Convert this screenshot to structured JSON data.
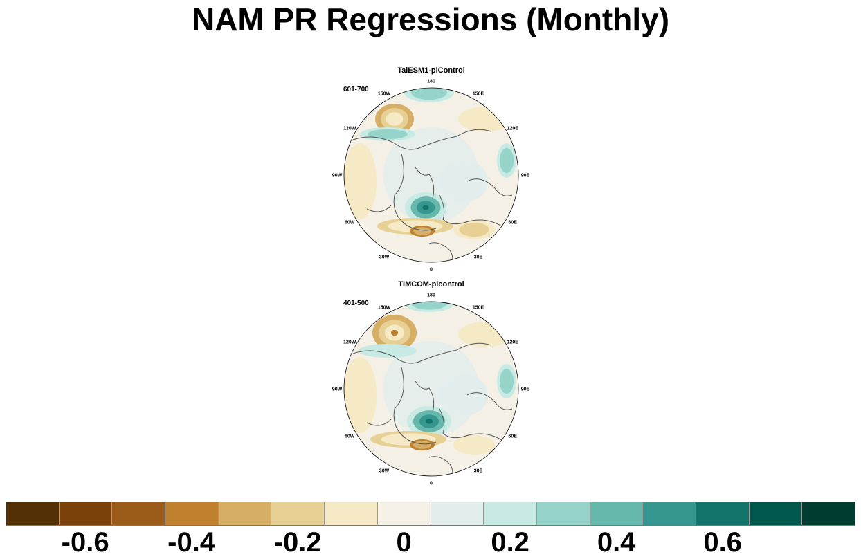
{
  "title": "NAM PR Regressions (Monthly)",
  "panels": [
    {
      "name": "TaiESM1-piControl",
      "period": "601-700"
    },
    {
      "name": "TIMCOM-picontrol",
      "period": "401-500"
    }
  ],
  "longitude_labels": [
    "180",
    "150E",
    "120E",
    "90E",
    "60E",
    "30E",
    "0",
    "30W",
    "60W",
    "90W",
    "120W",
    "150W"
  ],
  "colorbar": {
    "colors": [
      "#543005",
      "#7a420a",
      "#9b5c1a",
      "#bf812d",
      "#d6ae66",
      "#e6d093",
      "#f5e9c6",
      "#f4f0e6",
      "#e2eeed",
      "#c7eae5",
      "#96d3c9",
      "#66b8ad",
      "#35978f",
      "#13746b",
      "#01574c",
      "#003c30"
    ],
    "labels": [
      "-0.6",
      "-0.4",
      "-0.2",
      "0",
      "0.2",
      "0.4",
      "0.6"
    ]
  },
  "colors": {
    "ocean": "#e2eeed",
    "neutral": "#f4f0e6",
    "coastline": "#555555"
  }
}
